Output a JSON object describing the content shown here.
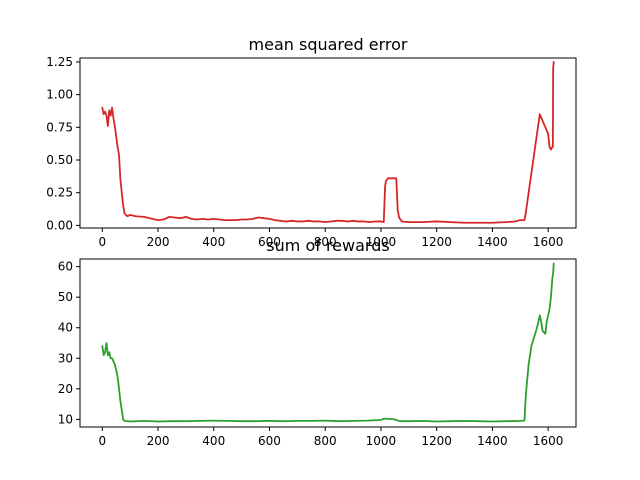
{
  "chart_data": [
    {
      "type": "line",
      "title": "mean squared error",
      "xlabel": "",
      "ylabel": "",
      "xlim": [
        -80,
        1700
      ],
      "ylim": [
        -0.02,
        1.28
      ],
      "xticks": [
        0,
        200,
        400,
        600,
        800,
        1000,
        1200,
        1400,
        1600
      ],
      "yticks": [
        0.0,
        0.25,
        0.5,
        0.75,
        1.0,
        1.25
      ],
      "ytick_labels": [
        "0.00",
        "0.25",
        "0.50",
        "0.75",
        "1.00",
        "1.25"
      ],
      "grid": false,
      "series": [
        {
          "color": "#d62728",
          "x": [
            0,
            5,
            10,
            15,
            20,
            25,
            30,
            35,
            40,
            45,
            50,
            55,
            60,
            65,
            70,
            75,
            80,
            90,
            100,
            120,
            150,
            180,
            200,
            220,
            240,
            260,
            280,
            300,
            320,
            340,
            360,
            380,
            400,
            420,
            440,
            460,
            480,
            500,
            520,
            540,
            560,
            580,
            600,
            620,
            640,
            660,
            680,
            700,
            720,
            740,
            760,
            780,
            800,
            820,
            840,
            860,
            880,
            900,
            920,
            940,
            960,
            980,
            1000,
            1010,
            1015,
            1018,
            1025,
            1040,
            1055,
            1060,
            1065,
            1075,
            1100,
            1150,
            1200,
            1250,
            1300,
            1350,
            1400,
            1450,
            1480,
            1500,
            1515,
            1520,
            1530,
            1540,
            1550,
            1560,
            1570,
            1580,
            1590,
            1600,
            1605,
            1610,
            1615,
            1617,
            1618,
            1620
          ],
          "y": [
            0.9,
            0.85,
            0.87,
            0.84,
            0.76,
            0.88,
            0.84,
            0.9,
            0.82,
            0.76,
            0.68,
            0.6,
            0.54,
            0.35,
            0.25,
            0.15,
            0.09,
            0.07,
            0.08,
            0.07,
            0.065,
            0.05,
            0.04,
            0.045,
            0.065,
            0.06,
            0.055,
            0.065,
            0.05,
            0.045,
            0.05,
            0.045,
            0.05,
            0.045,
            0.04,
            0.04,
            0.04,
            0.045,
            0.045,
            0.05,
            0.06,
            0.055,
            0.05,
            0.04,
            0.035,
            0.03,
            0.035,
            0.03,
            0.03,
            0.035,
            0.03,
            0.03,
            0.025,
            0.03,
            0.035,
            0.035,
            0.03,
            0.035,
            0.03,
            0.03,
            0.025,
            0.03,
            0.03,
            0.025,
            0.3,
            0.34,
            0.36,
            0.36,
            0.36,
            0.12,
            0.06,
            0.03,
            0.025,
            0.025,
            0.03,
            0.025,
            0.02,
            0.02,
            0.02,
            0.025,
            0.03,
            0.04,
            0.04,
            0.1,
            0.25,
            0.4,
            0.55,
            0.7,
            0.85,
            0.8,
            0.75,
            0.7,
            0.6,
            0.58,
            0.6,
            0.6,
            1.2,
            1.25
          ]
        }
      ]
    },
    {
      "type": "line",
      "title": "sum of rewards",
      "xlabel": "",
      "ylabel": "",
      "xlim": [
        -80,
        1700
      ],
      "ylim": [
        7.5,
        62.5
      ],
      "xticks": [
        0,
        200,
        400,
        600,
        800,
        1000,
        1200,
        1400,
        1600
      ],
      "yticks": [
        10,
        20,
        30,
        40,
        50,
        60
      ],
      "ytick_labels": [
        "10",
        "20",
        "30",
        "40",
        "50",
        "60"
      ],
      "grid": false,
      "series": [
        {
          "color": "#2ca02c",
          "x": [
            0,
            5,
            10,
            15,
            20,
            25,
            30,
            35,
            40,
            45,
            50,
            55,
            60,
            65,
            70,
            75,
            80,
            100,
            150,
            200,
            250,
            300,
            350,
            400,
            450,
            500,
            550,
            600,
            650,
            700,
            750,
            800,
            850,
            900,
            950,
            1000,
            1010,
            1020,
            1050,
            1060,
            1070,
            1100,
            1150,
            1200,
            1250,
            1300,
            1350,
            1400,
            1450,
            1500,
            1515,
            1520,
            1530,
            1540,
            1550,
            1560,
            1570,
            1575,
            1580,
            1590,
            1595,
            1600,
            1605,
            1610,
            1615,
            1618,
            1620
          ],
          "y": [
            34,
            31,
            32,
            35,
            31,
            32,
            30,
            30,
            29,
            28,
            26,
            24,
            20,
            16,
            13,
            10,
            9.5,
            9.3,
            9.5,
            9.3,
            9.4,
            9.4,
            9.5,
            9.6,
            9.5,
            9.4,
            9.4,
            9.5,
            9.4,
            9.5,
            9.5,
            9.6,
            9.4,
            9.5,
            9.6,
            9.8,
            10.2,
            10.2,
            10.0,
            9.6,
            9.4,
            9.4,
            9.5,
            9.3,
            9.4,
            9.5,
            9.4,
            9.3,
            9.4,
            9.5,
            9.6,
            18,
            28,
            34,
            37,
            40,
            44,
            42,
            39,
            38,
            42,
            44,
            46,
            50,
            56,
            58,
            61
          ]
        }
      ]
    }
  ]
}
